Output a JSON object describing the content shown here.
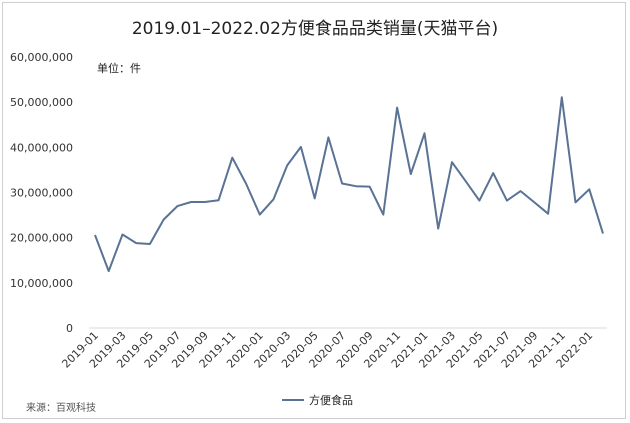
{
  "chart_data": {
    "type": "line",
    "title": "2019.01–2022.02方便食品品类销量(天猫平台)",
    "unit_label": "单位：件",
    "source": "来源：百观科技",
    "xlabel": "",
    "ylabel": "",
    "ylim": [
      0,
      60000000
    ],
    "yticks": [
      0,
      10000000,
      20000000,
      30000000,
      40000000,
      50000000,
      60000000
    ],
    "ytick_labels": [
      "0",
      "10,000,000",
      "20,000,000",
      "30,000,000",
      "40,000,000",
      "50,000,000",
      "60,000,000"
    ],
    "x": [
      "2019-01",
      "2019-02",
      "2019-03",
      "2019-04",
      "2019-05",
      "2019-06",
      "2019-07",
      "2019-08",
      "2019-09",
      "2019-10",
      "2019-11",
      "2019-12",
      "2020-01",
      "2020-02",
      "2020-03",
      "2020-04",
      "2020-05",
      "2020-06",
      "2020-07",
      "2020-08",
      "2020-09",
      "2020-10",
      "2020-11",
      "2020-12",
      "2021-01",
      "2021-02",
      "2021-03",
      "2021-04",
      "2021-05",
      "2021-06",
      "2021-07",
      "2021-08",
      "2021-09",
      "2021-10",
      "2021-11",
      "2021-12",
      "2022-01",
      "2022-02"
    ],
    "xtick_labels": [
      "2019-01",
      "2019-03",
      "2019-05",
      "2019-07",
      "2019-09",
      "2019-11",
      "2020-01",
      "2020-03",
      "2020-05",
      "2020-07",
      "2020-09",
      "2020-11",
      "2021-01",
      "2021-03",
      "2021-05",
      "2021-07",
      "2021-09",
      "2021-11",
      "2022-01"
    ],
    "series": [
      {
        "name": "方便食品",
        "color": "#5a7294",
        "values": [
          20600000,
          12600000,
          20700000,
          18800000,
          18600000,
          24000000,
          27000000,
          27900000,
          27900000,
          28300000,
          37700000,
          32000000,
          25100000,
          28500000,
          36000000,
          40100000,
          28700000,
          42200000,
          32000000,
          31400000,
          31300000,
          25100000,
          48800000,
          34100000,
          43100000,
          22000000,
          36700000,
          32500000,
          28200000,
          34300000,
          28200000,
          30300000,
          27800000,
          25300000,
          51100000,
          27800000,
          30700000,
          20900000
        ]
      }
    ],
    "legend": "bottom-center",
    "grid": false
  }
}
